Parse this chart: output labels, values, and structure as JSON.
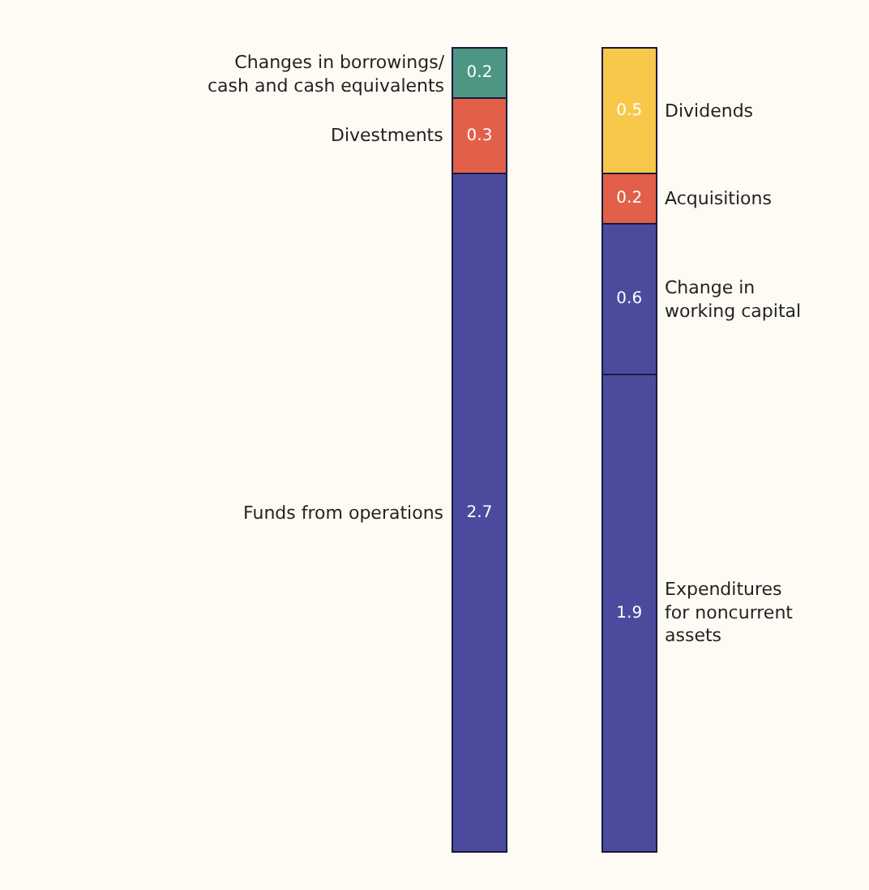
{
  "chart_data": {
    "type": "bar",
    "stacked": true,
    "data_labels": true,
    "legend": false,
    "categories": [
      null,
      null
    ],
    "series": [
      {
        "name": "Funds from operations",
        "color": "#4b4b9e",
        "values": [
          2.7,
          null
        ]
      },
      {
        "name": "Divestments",
        "color": "#e2604a",
        "values": [
          0.3,
          null
        ]
      },
      {
        "name": "Changes in borrowings/ cash and cash equivalents",
        "color": "#4d9684",
        "values": [
          0.2,
          null
        ]
      },
      {
        "name": "Expenditures for noncurrent assets",
        "color": "#4b4b9e",
        "values": [
          null,
          1.9
        ]
      },
      {
        "name": "Change in working capital",
        "color": "#4b4b9e",
        "values": [
          null,
          0.6
        ]
      },
      {
        "name": "Acquisitions",
        "color": "#e2604a",
        "values": [
          null,
          0.2
        ]
      },
      {
        "name": "Dividends",
        "color": "#f7c84a",
        "values": [
          null,
          0.5
        ]
      }
    ]
  }
}
